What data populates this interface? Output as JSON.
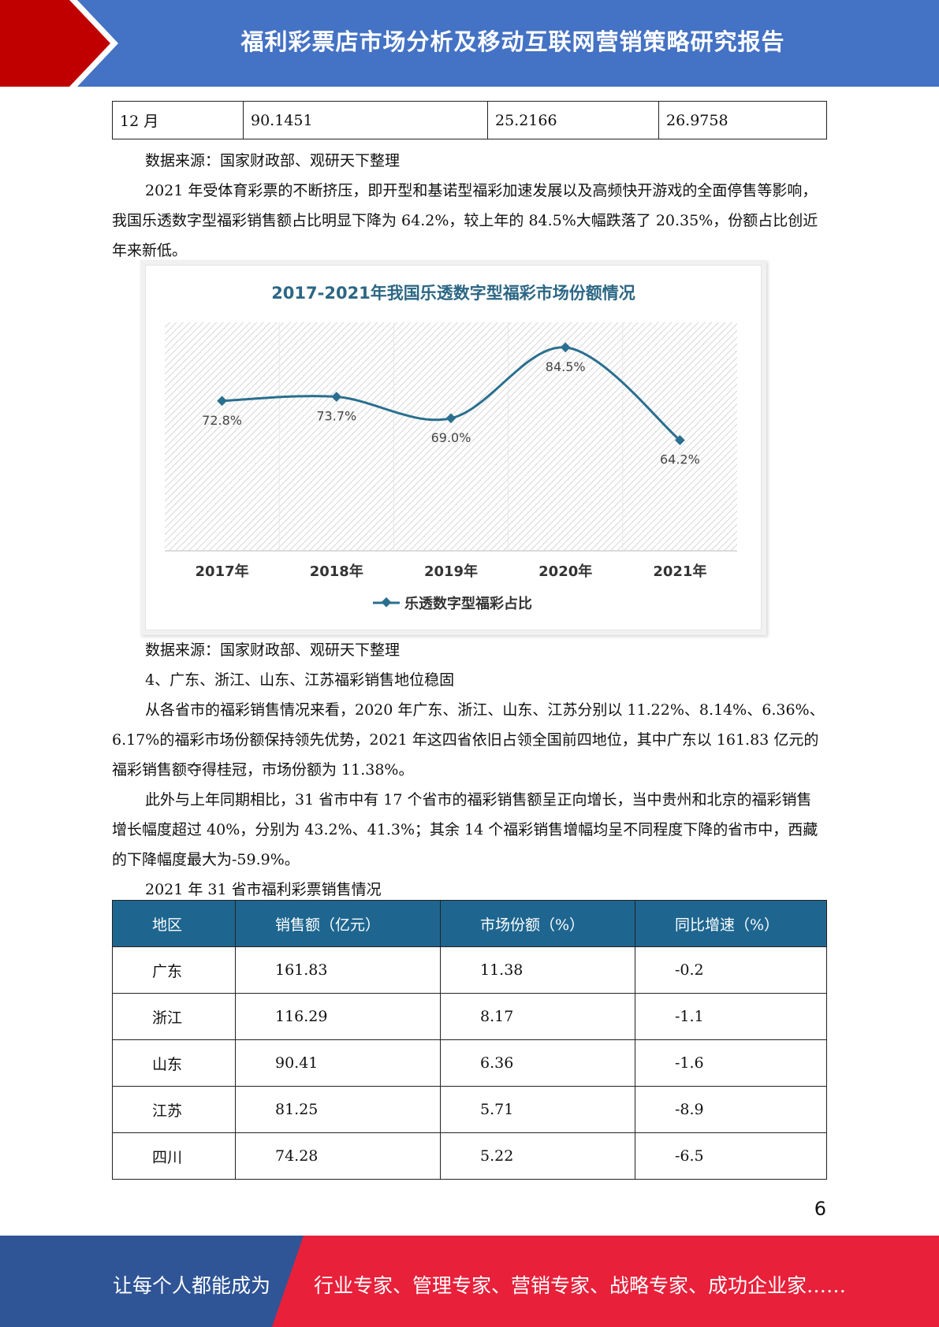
{
  "header": {
    "title": "福利彩票店市场分析及移动互联网营销策略研究报告"
  },
  "top_table": {
    "rows": [
      [
        "12 月",
        "90.1451",
        "25.2166",
        "26.9758"
      ]
    ]
  },
  "paragraphs": {
    "source1": "数据来源：国家财政部、观研天下整理",
    "p1": "2021 年受体育彩票的不断挤压，即开型和基诺型福彩加速发展以及高频快开游戏的全面停售等影响，我国乐透数字型福彩销售额占比明显下降为 64.2%，较上年的 84.5%大幅跌落了 20.35%，份额占比创近年来新低。",
    "source2": "数据来源：国家财政部、观研天下整理",
    "heading4": "4、广东、浙江、山东、江苏福彩销售地位稳固",
    "p2": "从各省市的福彩销售情况来看，2020 年广东、浙江、山东、江苏分别以 11.22%、8.14%、6.36%、6.17%的福彩市场份额保持领先优势，2021 年这四省依旧占领全国前四地位，其中广东以 161.83 亿元的福彩销售额夺得桂冠，市场份额为 11.38%。",
    "p3": "此外与上年同期相比，31 省市中有 17 个省市的福彩销售额呈正向增长，当中贵州和北京的福彩销售增长幅度超过 40%，分别为 43.2%、41.3%；其余 14 个福彩销售增幅均呈不同程度下降的省市中，西藏的下降幅度最大为-59.9%。",
    "table_caption": "2021 年 31 省市福利彩票销售情况"
  },
  "chart_data": {
    "type": "line",
    "title": "2017-2021年我国乐透数字型福彩市场份额情况",
    "categories": [
      "2017年",
      "2018年",
      "2019年",
      "2020年",
      "2021年"
    ],
    "series": [
      {
        "name": "乐透数字型福彩占比",
        "values": [
          72.8,
          73.7,
          69.0,
          84.5,
          64.2
        ],
        "labels": [
          "72.8%",
          "73.7%",
          "69.0%",
          "84.5%",
          "64.2%"
        ]
      }
    ],
    "xlabel": "",
    "ylabel": "",
    "ylim": [
      0,
      90
    ],
    "grid": true,
    "legend": "bottom",
    "color": "#2a6f8f"
  },
  "sales_table": {
    "headers": [
      "地区",
      "销售额（亿元）",
      "市场份额（%）",
      "同比增速（%）"
    ],
    "rows": [
      [
        "广东",
        "161.83",
        "11.38",
        "-0.2"
      ],
      [
        "浙江",
        "116.29",
        "8.17",
        "-1.1"
      ],
      [
        "山东",
        "90.41",
        "6.36",
        "-1.6"
      ],
      [
        "江苏",
        "81.25",
        "5.71",
        "-8.9"
      ],
      [
        "四川",
        "74.28",
        "5.22",
        "-6.5"
      ]
    ]
  },
  "page_number": "6",
  "footer": {
    "left": "让每个人都能成为",
    "right": "行业专家、管理专家、营销专家、战略专家、成功企业家……"
  },
  "colors": {
    "header_blue": "#4472c4",
    "header_red": "#c00000",
    "table_header": "#1e6690",
    "footer_blue": "#2f5597",
    "footer_red": "#e8203a"
  }
}
